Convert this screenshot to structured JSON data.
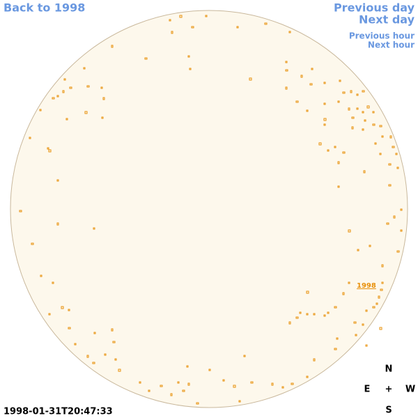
{
  "links": {
    "back": "Back to 1998",
    "previous_day": "Previous day",
    "next_day": "Next day",
    "previous_hour": "Previous hour",
    "next_hour": "Next hour"
  },
  "region_label": "1998",
  "timestamp": "1998-01-31T20:47:33",
  "compass": {
    "north": "N",
    "east": "E",
    "center": "+",
    "west": "W",
    "south": "S"
  }
}
